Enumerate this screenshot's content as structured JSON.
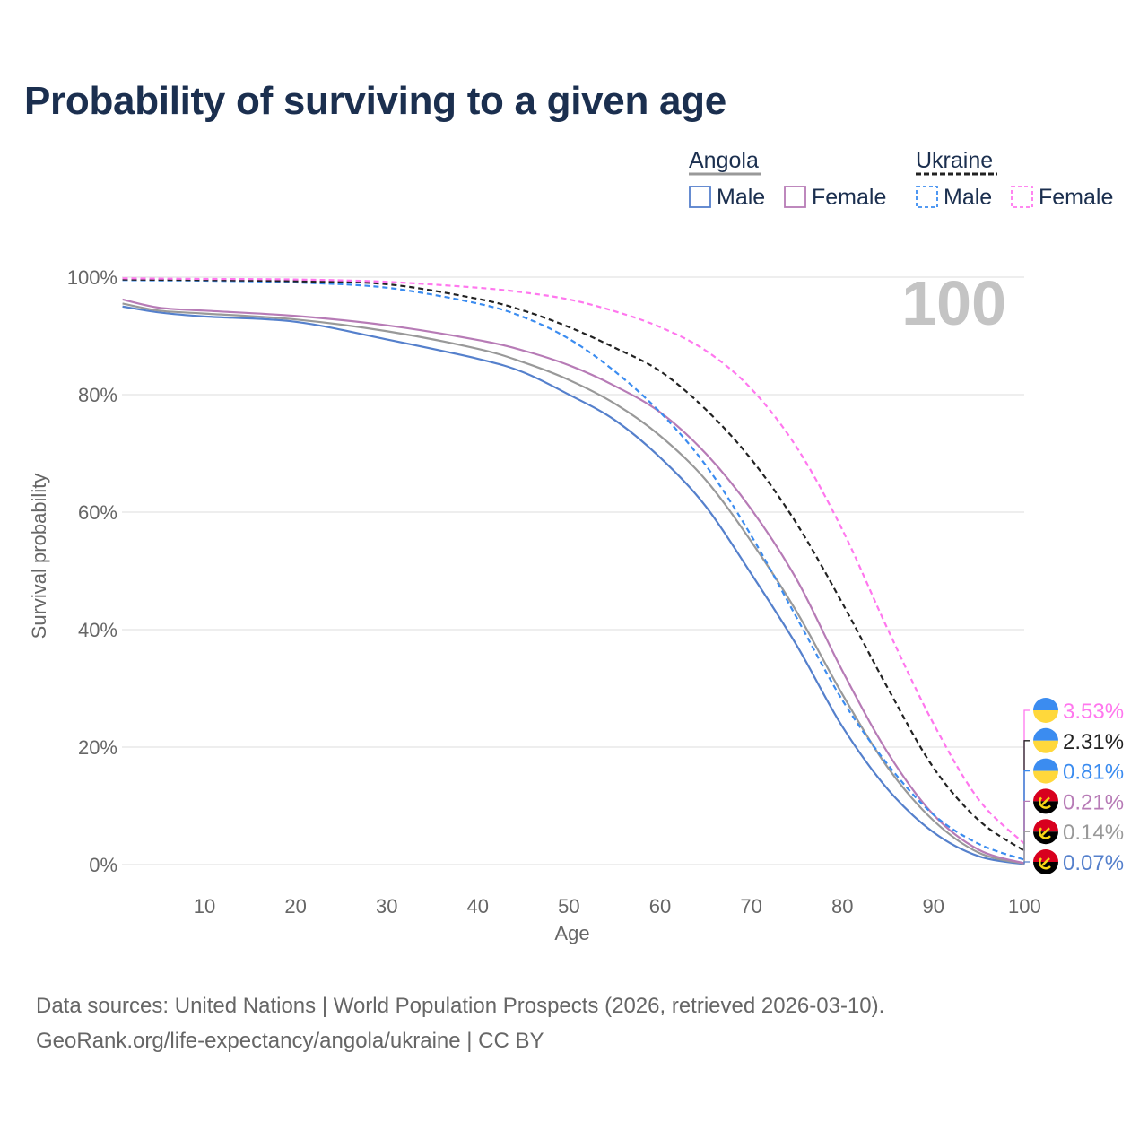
{
  "chart_data": {
    "type": "line",
    "title": "Probability of surviving to a given age",
    "xlabel": "Age",
    "ylabel": "Survival probability",
    "xlim": [
      0,
      100
    ],
    "ylim": [
      0,
      100
    ],
    "x_ticks": [
      "10",
      "20",
      "30",
      "40",
      "50",
      "60",
      "70",
      "80",
      "90",
      "100"
    ],
    "y_ticks": [
      "0%",
      "20%",
      "40%",
      "60%",
      "80%",
      "100%"
    ],
    "watermark": "100",
    "x": [
      1,
      5,
      10,
      20,
      30,
      40,
      45,
      50,
      55,
      60,
      65,
      70,
      75,
      80,
      85,
      90,
      95,
      100
    ],
    "series": [
      {
        "key": "ukr_f",
        "country": "Ukraine",
        "sex": "Female",
        "color": "#ff77ee",
        "dashed": true,
        "end_label": "3.53%",
        "flag": "ukraine",
        "values": [
          99.8,
          99.75,
          99.7,
          99.6,
          99.2,
          98.2,
          97.4,
          96.2,
          94.2,
          91.5,
          87.5,
          81,
          71,
          57,
          40,
          24,
          11,
          3.53
        ]
      },
      {
        "key": "ukr_b",
        "country": "Ukraine",
        "sex": "Both",
        "color": "#222222",
        "dashed": true,
        "end_label": "2.31%",
        "flag": "ukraine",
        "values": [
          99.6,
          99.55,
          99.5,
          99.3,
          98.8,
          96.3,
          94.3,
          91.5,
          88,
          84,
          77.5,
          69,
          58,
          44.5,
          30,
          16.5,
          7.5,
          2.31
        ]
      },
      {
        "key": "ukr_m",
        "country": "Ukraine",
        "sex": "Male",
        "color": "#3b8cf0",
        "dashed": true,
        "end_label": "0.81%",
        "flag": "ukraine",
        "values": [
          99.5,
          99.45,
          99.4,
          99.1,
          98.2,
          95.5,
          93.2,
          89.5,
          84,
          77,
          68,
          56,
          42,
          28,
          17,
          8.5,
          3.5,
          0.81
        ]
      },
      {
        "key": "ago_f",
        "country": "Angola",
        "sex": "Female",
        "color": "#b77bb6",
        "dashed": false,
        "end_label": "0.21%",
        "flag": "angola",
        "values": [
          96.2,
          94.8,
          94.3,
          93.4,
          91.8,
          89.3,
          87.5,
          85,
          81.5,
          77,
          70,
          60.5,
          48.5,
          33,
          19,
          8.5,
          2.5,
          0.21
        ]
      },
      {
        "key": "ago_b",
        "country": "Angola",
        "sex": "Both",
        "color": "#999999",
        "dashed": false,
        "end_label": "0.14%",
        "flag": "angola",
        "values": [
          95.5,
          94.3,
          93.8,
          92.8,
          90.8,
          87.8,
          85.5,
          82.5,
          78.5,
          73,
          65.5,
          55,
          43,
          29,
          16.5,
          7.5,
          2,
          0.14
        ]
      },
      {
        "key": "ago_m",
        "country": "Angola",
        "sex": "Male",
        "color": "#5580cc",
        "dashed": false,
        "end_label": "0.07%",
        "flag": "angola",
        "values": [
          95,
          94,
          93.3,
          92.4,
          89.4,
          86.1,
          83.8,
          80,
          75.7,
          69.3,
          61,
          49.5,
          37.3,
          23.5,
          12.8,
          5.5,
          1.4,
          0.07
        ]
      }
    ],
    "legend": {
      "placement": "top-right",
      "groups": [
        {
          "country": "Angola",
          "items": [
            {
              "label": "Male",
              "color": "#5580cc"
            },
            {
              "label": "Female",
              "color": "#b77bb6"
            }
          ],
          "line_color": "#999999",
          "dashed": false
        },
        {
          "country": "Ukraine",
          "items": [
            {
              "label": "Male",
              "color": "#3b8cf0"
            },
            {
              "label": "Female",
              "color": "#ff77ee"
            }
          ],
          "line_color": "#222222",
          "dashed": true
        }
      ]
    }
  },
  "footer": {
    "line1": "Data sources: United Nations | World Population Prospects (2026, retrieved 2026-03-10).",
    "line2": "GeoRank.org/life-expectancy/angola/ukraine | CC BY"
  }
}
